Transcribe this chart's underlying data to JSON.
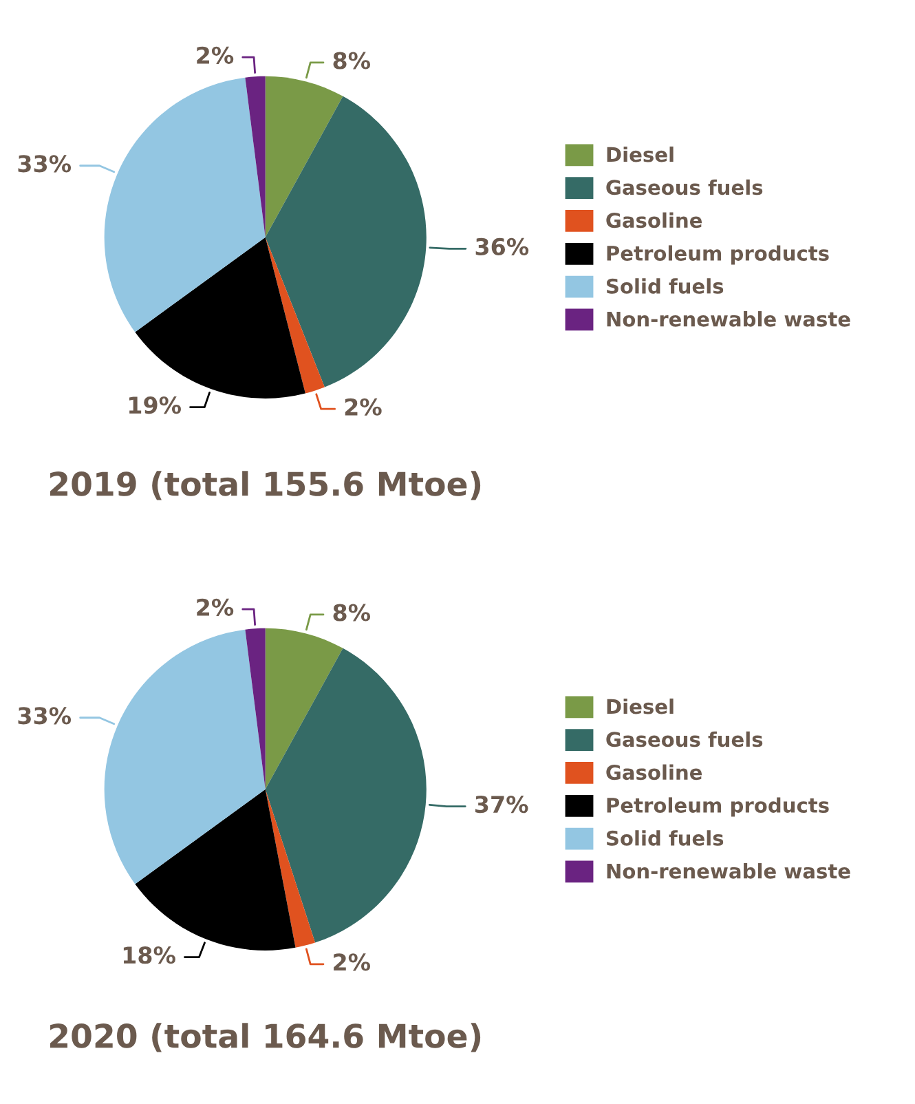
{
  "chart_data": [
    {
      "type": "pie",
      "title": "2019 (total 155.6 Mtoe)",
      "categories": [
        "Diesel",
        "Gaseous fuels",
        "Gasoline",
        "Petroleum products",
        "Solid fuels",
        "Non-renewable waste"
      ],
      "values": [
        8,
        36,
        2,
        19,
        33,
        2
      ],
      "value_labels": [
        "8%",
        "36%",
        "2%",
        "19%",
        "33%",
        "2%"
      ],
      "colors": [
        "#7a9a47",
        "#356b66",
        "#e0521f",
        "#000000",
        "#93c6e2",
        "#6a2381"
      ],
      "legend": "right"
    },
    {
      "type": "pie",
      "title": "2020 (total 164.6 Mtoe)",
      "categories": [
        "Diesel",
        "Gaseous fuels",
        "Gasoline",
        "Petroleum products",
        "Solid fuels",
        "Non-renewable waste"
      ],
      "values": [
        8,
        37,
        2,
        18,
        33,
        2
      ],
      "value_labels": [
        "8%",
        "37%",
        "2%",
        "18%",
        "33%",
        "2%"
      ],
      "colors": [
        "#7a9a47",
        "#356b66",
        "#e0521f",
        "#000000",
        "#93c6e2",
        "#6a2381"
      ],
      "legend": "right"
    }
  ]
}
